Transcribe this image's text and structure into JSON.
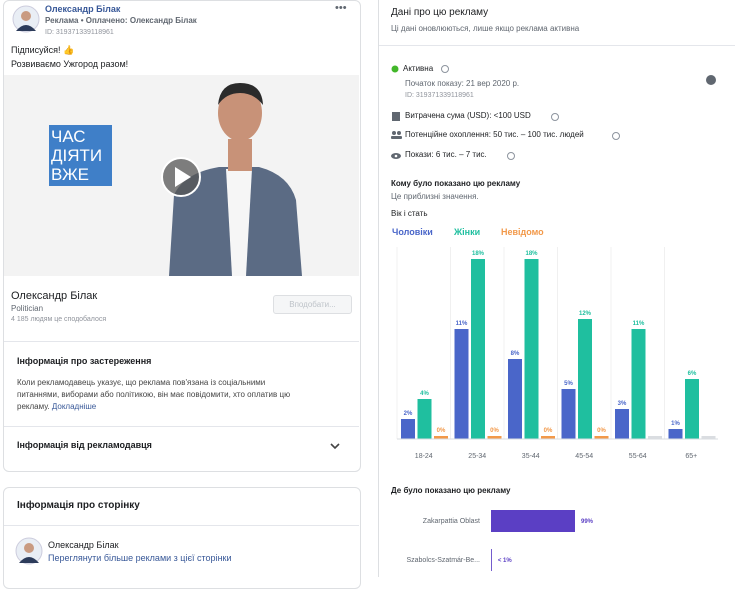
{
  "ad_preview": {
    "page_name": "Олександр Білак",
    "sponsored": "Реклама • Оплачено:",
    "paid_by": "Олександр Білак",
    "id": "ID: 319371339118961",
    "text": [
      "Підписуйся! 👍",
      "Розвиваємо Ужгород разом!"
    ],
    "video_logo": [
      "ЧАС",
      "ДІЯТИ",
      "ВЖЕ"
    ],
    "footer_name": "Олександр Білак",
    "category": "Politician",
    "likes": "4 185 людям це сподобалося",
    "like_button": "Вподобати..."
  },
  "disclaimer": {
    "title": "Інформація про застереження",
    "text": [
      "Коли рекламодавець указує, що реклама пов'язана із соціальними",
      "питаннями, виборами або політикою, він має повідомити, хто оплатив цю",
      "рекламу."
    ],
    "link": "Докладніше"
  },
  "advertiser_info": {
    "title": "Інформація від рекламодавця"
  },
  "page_info": {
    "title": "Інформація про сторінку",
    "page_name": "Олександр Білак",
    "link": "Переглянути більше реклами з цієї сторінки"
  },
  "about": {
    "title": "Дані про цю рекламу",
    "subtitle": "Ці дані оновлюються, лише якщо реклама активна",
    "status": "Активна",
    "start": "Початок показу: 21 вер 2020 р.",
    "id": "ID: 319371339118961",
    "spend": "Витрачена сума (USD): <100 USD",
    "reach": "Потенційне охоплення: 50 тис. – 100 тис. людей",
    "impressions": "Покази: 6 тис. – 7 тис."
  },
  "audience": {
    "title": "Кому було показано цю рекламу",
    "subtitle": "Це приблизні значення."
  },
  "chart_data": [
    {
      "type": "bar",
      "title": "Вік і стать",
      "categories": [
        "18-24",
        "25-34",
        "35-44",
        "45-54",
        "55-64",
        "65+"
      ],
      "series": [
        {
          "name": "Чоловіки",
          "color": "#4a66c9",
          "values": [
            2,
            11,
            8,
            5,
            3,
            1
          ],
          "value_labels": [
            "2%",
            "11%",
            "8%",
            "5%",
            "3%",
            "1%"
          ]
        },
        {
          "name": "Жінки",
          "color": "#1fbf9f",
          "values": [
            4,
            18,
            18,
            12,
            11,
            6
          ],
          "value_labels": [
            "4%",
            "18%",
            "18%",
            "12%",
            "11%",
            "6%"
          ]
        },
        {
          "name": "Невідомо",
          "color": "#f2994a",
          "values": [
            0,
            0,
            0,
            0,
            null,
            null
          ],
          "value_labels": [
            "0%",
            "0%",
            "0%",
            "0%",
            null,
            null
          ]
        }
      ]
    },
    {
      "type": "hbar",
      "title": "Де було показано цю рекламу",
      "categories": [
        "Zakarpattia Oblast",
        "Szabolcs-Szatmár-Be..."
      ],
      "values": [
        99,
        1
      ],
      "value_labels": [
        "99%",
        "< 1%"
      ],
      "color": "#5b3fc4"
    }
  ]
}
